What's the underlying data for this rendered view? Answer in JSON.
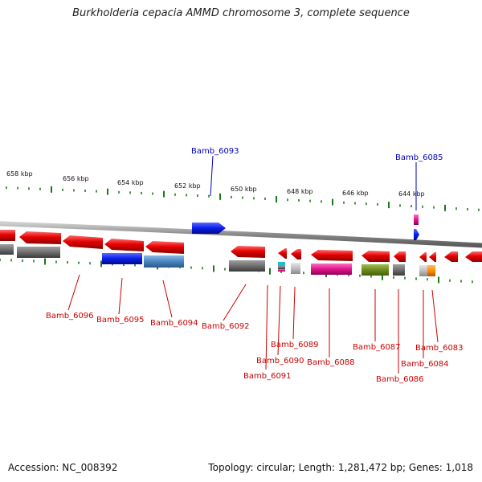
{
  "title": "Burkholderia cepacia AMMD chromosome 3, complete sequence",
  "footer": {
    "accession": "Accession: NC_008392",
    "topology": "Topology: circular; Length: 1,281,472 bp; Genes: 1,018"
  },
  "colors": {
    "red": "#e60000",
    "blue": "#0a1ee6",
    "gray": "#6e6e6e",
    "steelblue": "#4a86c0",
    "magenta": "#e0148c",
    "olive": "#6e8a1e",
    "lightgray": "#bdbdbd",
    "orange": "#ff8c00",
    "cyan": "#22b8d8",
    "tick": "#1a7a1a",
    "backbone": "#888888",
    "label_red": "#cc0000",
    "label_blue": "#0000bb"
  },
  "scale": [
    {
      "label": "658 kbp"
    },
    {
      "label": "656 kbp"
    },
    {
      "label": "654 kbp"
    },
    {
      "label": "652 kbp"
    },
    {
      "label": "650 kbp"
    },
    {
      "label": "648 kbp"
    },
    {
      "label": "646 kbp"
    },
    {
      "label": "644 kbp"
    }
  ],
  "gene_labels": [
    {
      "text": "Bamb_6093",
      "color": "label_blue"
    },
    {
      "text": "Bamb_6085",
      "color": "label_blue"
    },
    {
      "text": "Bamb_6096",
      "color": "label_red"
    },
    {
      "text": "Bamb_6095",
      "color": "label_red"
    },
    {
      "text": "Bamb_6094",
      "color": "label_red"
    },
    {
      "text": "Bamb_6092",
      "color": "label_red"
    },
    {
      "text": "Bamb_6089",
      "color": "label_red"
    },
    {
      "text": "Bamb_6090",
      "color": "label_red"
    },
    {
      "text": "Bamb_6091",
      "color": "label_red"
    },
    {
      "text": "Bamb_6088",
      "color": "label_red"
    },
    {
      "text": "Bamb_6087",
      "color": "label_red"
    },
    {
      "text": "Bamb_6086",
      "color": "label_red"
    },
    {
      "text": "Bamb_6083",
      "color": "label_red"
    },
    {
      "text": "Bamb_6084",
      "color": "label_red"
    }
  ]
}
